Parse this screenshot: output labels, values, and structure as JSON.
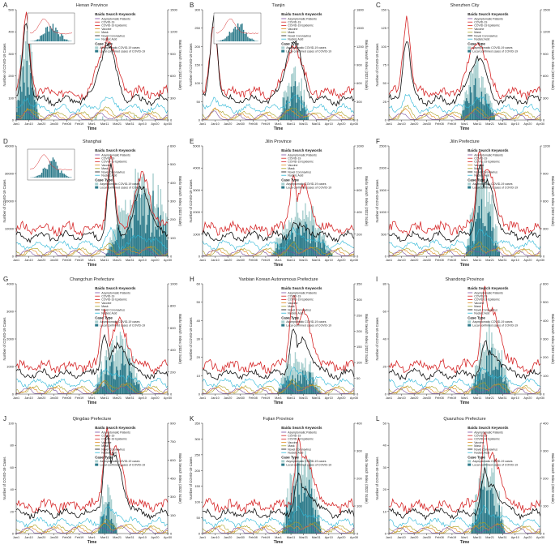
{
  "colors": {
    "red": "#d62728",
    "black": "#111111",
    "cyan": "#29b6d6",
    "olive": "#a8a020",
    "orange": "#e08a1e",
    "purple": "#7b4fa0",
    "green": "#4caf50",
    "bar_asym": "#a8cfcf",
    "bar_local": "#2c7a8a",
    "axis": "#333333"
  },
  "keywords_title": "Baidu Search Keywords",
  "keywords": [
    "Asymptomatic Patients",
    "COVID-19",
    "COVID-19 Epidemic",
    "Vaccine",
    "Mask",
    "Novel Coronavirus",
    "Nucleic Acid"
  ],
  "case_title": "Case Type",
  "case_types": [
    "Asymptomatic COVID-19 cases",
    "Local confirmed cases of COVID-19"
  ],
  "xlabel": "Time",
  "ylabel_left": "Number of COVID-19 Cases",
  "ylabel_right": "Baidu Search Index (2022 Scale)",
  "date_ticks": [
    "Jan1",
    "Jan10",
    "Jan20",
    "Jan30",
    "Feb08",
    "Feb19",
    "Mar1",
    "Mar11",
    "Mar21",
    "Mar31",
    "Apr10",
    "Apr20",
    "Apr30"
  ],
  "chart_data": [
    {
      "letter": "A",
      "title": "Henan Province",
      "type": "line+bar",
      "ylim_left": [
        0,
        500
      ],
      "ticks_left": [
        "0",
        "100",
        "200",
        "300",
        "400",
        "500"
      ],
      "ylim_right": [
        0,
        1500
      ],
      "ticks_right": [
        "0",
        "300",
        "600",
        "900",
        "1200",
        "1500"
      ],
      "peak_day": 8,
      "peak2_day": 72,
      "bar_center": 8,
      "bar_width": 10,
      "bar_height": 0.85,
      "has_inset": true,
      "red_peak": 0.95,
      "black_peak": 0.9
    },
    {
      "letter": "B",
      "title": "Tianjin",
      "type": "line+bar",
      "ylim_left": [
        0,
        300
      ],
      "ticks_left": [
        "0",
        "50",
        "100",
        "150",
        "200",
        "250",
        "300"
      ],
      "ylim_right": [
        0,
        1800
      ],
      "ticks_right": [
        "0",
        "300",
        "600",
        "900",
        "1200",
        "1500",
        "1800"
      ],
      "peak_day": 9,
      "peak2_day": 72,
      "bar_center": 72,
      "bar_width": 12,
      "bar_height": 0.55,
      "has_inset": true,
      "red_peak": 0.85,
      "black_peak": 0.95
    },
    {
      "letter": "C",
      "title": "Shenzhen City",
      "type": "line+bar",
      "ylim_left": [
        0,
        150
      ],
      "ticks_left": [
        "0",
        "25",
        "50",
        "75",
        "100",
        "125",
        "150"
      ],
      "ylim_right": [
        0,
        1500
      ],
      "ticks_right": [
        "0",
        "300",
        "600",
        "900",
        "1200",
        "1500"
      ],
      "peak_day": 14,
      "peak2_day": 70,
      "bar_center": 70,
      "bar_width": 14,
      "bar_height": 0.6,
      "has_inset": false,
      "red_peak": 0.95,
      "black_peak": 0.75
    },
    {
      "letter": "D",
      "title": "Shanghai",
      "type": "line+bar",
      "ylim_left": [
        0,
        40000
      ],
      "ticks_left": [
        "0",
        "10000",
        "20000",
        "30000",
        "40000"
      ],
      "ylim_right": [
        0,
        600
      ],
      "ticks_right": [
        "0",
        "100",
        "200",
        "300",
        "400",
        "500",
        "600"
      ],
      "peak_day": 75,
      "peak2_day": 100,
      "bar_center": 100,
      "bar_width": 30,
      "bar_height": 0.85,
      "has_inset": true,
      "red_peak": 0.9,
      "black_peak": 0.8
    },
    {
      "letter": "E",
      "title": "Jilin Province",
      "type": "line+bar",
      "ylim_left": [
        0,
        5000
      ],
      "ticks_left": [
        "0",
        "1000",
        "2000",
        "3000",
        "4000",
        "5000"
      ],
      "ylim_right": [
        0,
        1000
      ],
      "ticks_right": [
        "0",
        "200",
        "400",
        "600",
        "800",
        "1000"
      ],
      "peak_day": 72,
      "peak2_day": 80,
      "bar_center": 78,
      "bar_width": 25,
      "bar_height": 0.55,
      "has_inset": false,
      "red_peak": 0.75,
      "black_peak": 0.3
    },
    {
      "letter": "F",
      "title": "Jilin Prefecture",
      "type": "line+bar",
      "ylim_left": [
        0,
        2500
      ],
      "ticks_left": [
        "0",
        "500",
        "1000",
        "1500",
        "2000",
        "2500"
      ],
      "ylim_right": [
        0,
        1200
      ],
      "ticks_right": [
        "0",
        "300",
        "600",
        "900",
        "1200"
      ],
      "peak_day": 72,
      "peak2_day": 78,
      "bar_center": 74,
      "bar_width": 14,
      "bar_height": 0.9,
      "has_inset": false,
      "red_peak": 0.97,
      "black_peak": 0.85
    },
    {
      "letter": "G",
      "title": "Changchun Prefecture",
      "type": "line+bar",
      "ylim_left": [
        0,
        4000
      ],
      "ticks_left": [
        "0",
        "1000",
        "2000",
        "3000",
        "4000"
      ],
      "ylim_right": [
        0,
        1100
      ],
      "ticks_right": [
        "0",
        "200",
        "400",
        "600",
        "800",
        "1000"
      ],
      "peak_day": 70,
      "peak2_day": 82,
      "bar_center": 80,
      "bar_width": 20,
      "bar_height": 0.6,
      "has_inset": false,
      "red_peak": 0.8,
      "black_peak": 0.55
    },
    {
      "letter": "H",
      "title": "Yanbian Korean Autonomous Prefecture",
      "type": "line+bar",
      "ylim_left": [
        0,
        60
      ],
      "ticks_left": [
        "0",
        "10",
        "20",
        "30",
        "40",
        "50",
        "60"
      ],
      "ylim_right": [
        0,
        350
      ],
      "ticks_right": [
        "0",
        "50",
        "100",
        "150",
        "200",
        "250",
        "300",
        "350"
      ],
      "peak_day": 72,
      "peak2_day": 80,
      "bar_center": 76,
      "bar_width": 18,
      "bar_height": 0.45,
      "has_inset": false,
      "red_peak": 0.92,
      "black_peak": 0.6
    },
    {
      "letter": "I",
      "title": "Shandong Province",
      "type": "line+bar",
      "ylim_left": [
        0,
        80
      ],
      "ticks_left": [
        "0",
        "20",
        "40",
        "60",
        "80"
      ],
      "ylim_right": [
        0,
        600
      ],
      "ticks_right": [
        "0",
        "100",
        "200",
        "300",
        "400",
        "500",
        "600"
      ],
      "peak_day": 76,
      "peak2_day": 82,
      "bar_center": 80,
      "bar_width": 16,
      "bar_height": 0.7,
      "has_inset": false,
      "red_peak": 0.95,
      "black_peak": 0.45
    },
    {
      "letter": "J",
      "title": "Qingdao Prefecture",
      "type": "line+bar",
      "ylim_left": [
        0,
        100
      ],
      "ticks_left": [
        "0",
        "20",
        "40",
        "60",
        "80",
        "100"
      ],
      "ylim_right": [
        0,
        900
      ],
      "ticks_right": [
        "0",
        "150",
        "300",
        "450",
        "600",
        "750",
        "900"
      ],
      "peak_day": 72,
      "peak2_day": 78,
      "bar_center": 72,
      "bar_width": 8,
      "bar_height": 0.5,
      "has_inset": false,
      "red_peak": 0.97,
      "black_peak": 0.9
    },
    {
      "letter": "K",
      "title": "Fujian Province",
      "type": "line+bar",
      "ylim_left": [
        0,
        350
      ],
      "ticks_left": [
        "0",
        "50",
        "100",
        "150",
        "200",
        "250",
        "300",
        "350"
      ],
      "ylim_right": [
        0,
        450
      ],
      "ticks_right": [
        "0",
        "100",
        "200",
        "300",
        "400"
      ],
      "peak_day": 76,
      "peak2_day": 82,
      "bar_center": 78,
      "bar_width": 16,
      "bar_height": 0.9,
      "has_inset": false,
      "red_peak": 0.85,
      "black_peak": 0.5
    },
    {
      "letter": "L",
      "title": "Quanzhou Prefecture",
      "type": "line+bar",
      "ylim_left": [
        0,
        50
      ],
      "ticks_left": [
        "0",
        "10",
        "20",
        "30",
        "40",
        "50"
      ],
      "ylim_right": [
        0,
        450
      ],
      "ticks_right": [
        "0",
        "100",
        "200",
        "300",
        "400"
      ],
      "peak_day": 76,
      "peak2_day": 82,
      "bar_center": 78,
      "bar_width": 14,
      "bar_height": 0.85,
      "has_inset": false,
      "red_peak": 0.9,
      "black_peak": 0.55
    }
  ]
}
